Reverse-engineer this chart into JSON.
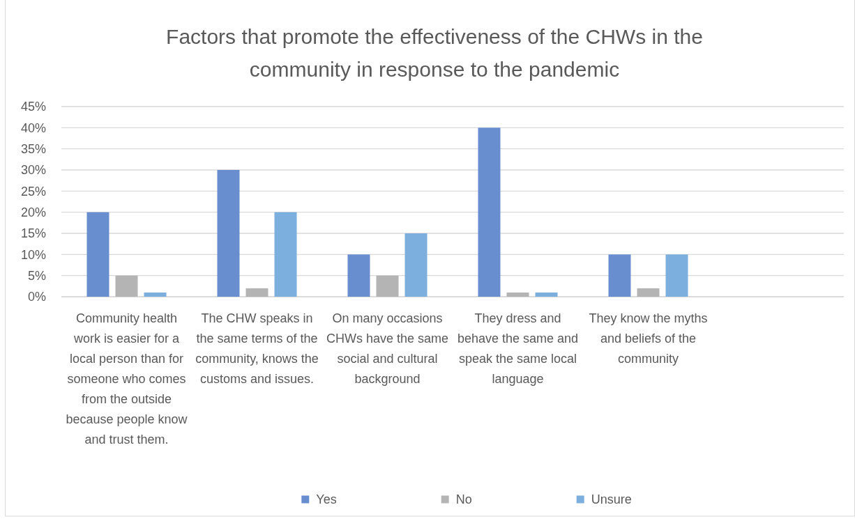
{
  "chart_data": {
    "type": "bar",
    "title": "Factors that promote the effectiveness of the CHWs in the community in response to the pandemic",
    "categories": [
      "Community health work is easier for a local person than for someone who comes from the outside because people know and trust them.",
      "The CHW speaks in the same terms of the community, knows the customs and issues.",
      "On many occasions CHWs have the same social and cultural background",
      "They dress and behave the same and speak the same local language",
      "They know the myths and beliefs of the community",
      null
    ],
    "series": [
      {
        "name": "Yes",
        "color": "#698ed0",
        "values": [
          20,
          30,
          10,
          40,
          10,
          null
        ]
      },
      {
        "name": "No",
        "color": "#b4b4b4",
        "values": [
          5,
          2,
          5,
          1,
          2,
          null
        ]
      },
      {
        "name": "Unsure",
        "color": "#7cafdd",
        "values": [
          1,
          20,
          15,
          1,
          10,
          null
        ]
      }
    ],
    "ylim": [
      0,
      45
    ],
    "yticks": [
      {
        "value": 0,
        "label": "0%"
      },
      {
        "value": 5,
        "label": "5%"
      },
      {
        "value": 10,
        "label": "10%"
      },
      {
        "value": 15,
        "label": "15%"
      },
      {
        "value": 20,
        "label": "20%"
      },
      {
        "value": 25,
        "label": "25%"
      },
      {
        "value": 30,
        "label": "30%"
      },
      {
        "value": 35,
        "label": "35%"
      },
      {
        "value": 40,
        "label": "40%"
      },
      {
        "value": 45,
        "label": "45%"
      }
    ],
    "grid": "y",
    "legend": "bottom"
  }
}
